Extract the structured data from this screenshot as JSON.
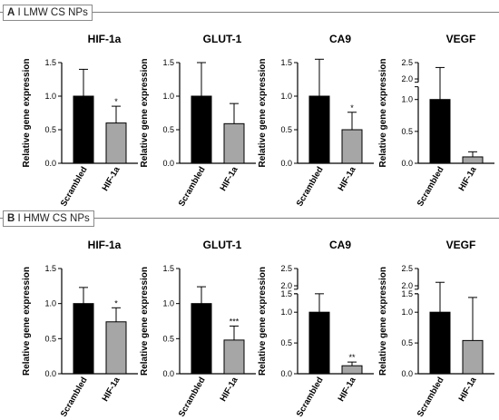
{
  "panels": [
    {
      "letter": "A",
      "label": "I LMW CS NPs"
    },
    {
      "letter": "B",
      "label": "I HMW CS NPs"
    }
  ],
  "colors": {
    "scrambled_bar": "#000000",
    "hif1a_bar": "#a6a6a6",
    "axis": "#000000",
    "header_line": "#7f7f7f"
  },
  "chart_data": [
    {
      "type": "bar",
      "panel": "A",
      "title": "HIF-1a",
      "ylabel": "Relative gene expression",
      "categories": [
        "Scrambled",
        "HIF-1a"
      ],
      "values": [
        1.0,
        0.6
      ],
      "error": [
        0.4,
        0.25
      ],
      "significance": [
        "",
        "*"
      ],
      "ylim": [
        0,
        1.5
      ],
      "yticks": [
        "0.0",
        "0.5",
        "1.0",
        "1.5"
      ]
    },
    {
      "type": "bar",
      "panel": "A",
      "title": "GLUT-1",
      "ylabel": "Relative gene expression",
      "categories": [
        "Scrambled",
        "HIF-1a"
      ],
      "values": [
        1.0,
        0.59
      ],
      "error": [
        0.5,
        0.3
      ],
      "significance": [
        "",
        ""
      ],
      "ylim": [
        0,
        1.5
      ],
      "yticks": [
        "0.0",
        "0.5",
        "1.0",
        "1.5"
      ]
    },
    {
      "type": "bar",
      "panel": "A",
      "title": "CA9",
      "ylabel": "Relative gene expression",
      "categories": [
        "Scrambled",
        "HIF-1a"
      ],
      "values": [
        1.0,
        0.5
      ],
      "error": [
        0.55,
        0.26
      ],
      "significance": [
        "",
        "*"
      ],
      "ylim": [
        0,
        1.5
      ],
      "yticks": [
        "0.0",
        "0.5",
        "1.0",
        "1.5"
      ]
    },
    {
      "type": "bar",
      "panel": "A",
      "title": "VEGF",
      "ylabel": "Relative gene expression",
      "categories": [
        "Scrambled",
        "HIF-1a"
      ],
      "values": [
        1.0,
        0.1
      ],
      "error": [
        1.35,
        0.08
      ],
      "significance": [
        "",
        ""
      ],
      "ylim": [
        0,
        2.5
      ],
      "axis_break": [
        1.2,
        1.9
      ],
      "yticks": [
        "0.0",
        "0.5",
        "1.0",
        "2.0",
        "2.5"
      ]
    },
    {
      "type": "bar",
      "panel": "B",
      "title": "HIF-1a",
      "ylabel": "Relative gene expression",
      "categories": [
        "Scrambled",
        "HIF-1a"
      ],
      "values": [
        1.0,
        0.74
      ],
      "error": [
        0.23,
        0.2
      ],
      "significance": [
        "",
        "*"
      ],
      "ylim": [
        0,
        1.5
      ],
      "yticks": [
        "0.0",
        "0.5",
        "1.0",
        "1.5"
      ]
    },
    {
      "type": "bar",
      "panel": "B",
      "title": "GLUT-1",
      "ylabel": "Relative gene expression",
      "categories": [
        "Scrambled",
        "HIF-1a"
      ],
      "values": [
        1.0,
        0.48
      ],
      "error": [
        0.24,
        0.2
      ],
      "significance": [
        "",
        "***"
      ],
      "ylim": [
        0,
        1.5
      ],
      "yticks": [
        "0.0",
        "0.5",
        "1.0",
        "1.5"
      ]
    },
    {
      "type": "bar",
      "panel": "B",
      "title": "CA9",
      "ylabel": "Relative gene expression",
      "categories": [
        "Scrambled",
        "HIF-1a"
      ],
      "values": [
        1.0,
        0.13
      ],
      "error": [
        0.85,
        0.06
      ],
      "significance": [
        "",
        "**"
      ],
      "ylim": [
        0,
        2.5
      ],
      "axis_break": [
        1.3,
        1.9
      ],
      "yticks": [
        "0.0",
        "0.5",
        "1.0",
        "1.5",
        "2.0",
        "2.5"
      ]
    },
    {
      "type": "bar",
      "panel": "B",
      "title": "VEGF",
      "ylabel": "Relative gene expression",
      "categories": [
        "Scrambled",
        "HIF-1a"
      ],
      "values": [
        1.0,
        0.54
      ],
      "error": [
        1.1,
        0.7
      ],
      "significance": [
        "",
        ""
      ],
      "ylim": [
        0,
        2.5
      ],
      "axis_break": [
        1.3,
        1.9
      ],
      "yticks": [
        "0.0",
        "0.5",
        "1.0",
        "1.5",
        "2.0",
        "2.5"
      ]
    }
  ]
}
